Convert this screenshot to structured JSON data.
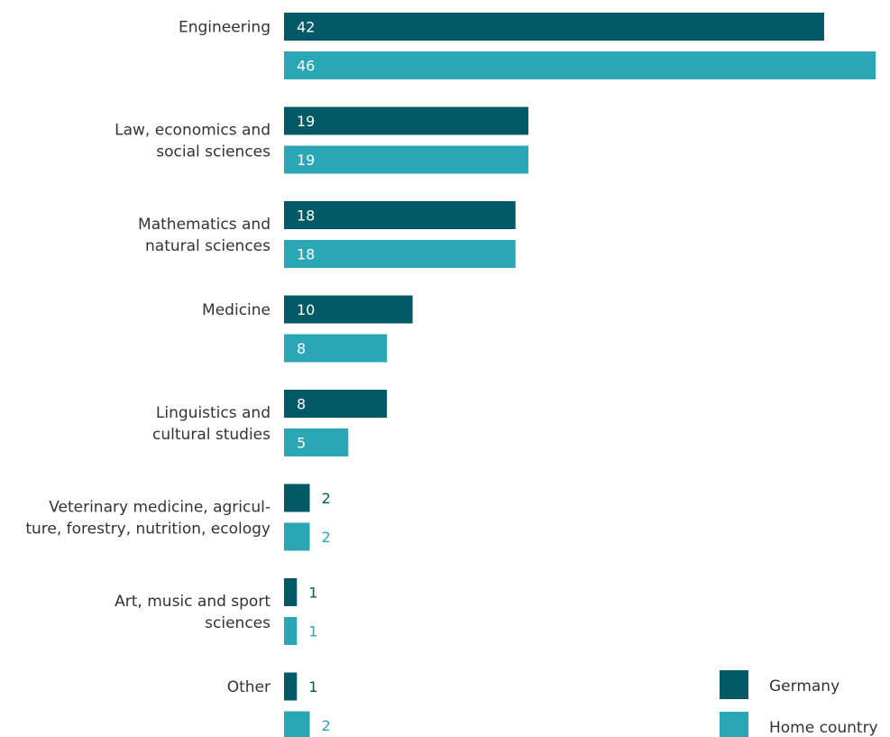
{
  "chart_data": {
    "type": "bar",
    "orientation": "horizontal",
    "categories": [
      [
        "Engineering"
      ],
      [
        "Law, economics and",
        "social sciences"
      ],
      [
        "Mathematics and",
        "natural sciences"
      ],
      [
        "Medicine"
      ],
      [
        "Linguistics and",
        "cultural studies"
      ],
      [
        "Veterinary medicine, agricul-",
        "ture, forestry, nutrition, ecology"
      ],
      [
        "Art, music and sport",
        "sciences"
      ],
      [
        "Other"
      ]
    ],
    "series": [
      {
        "name": "Germany",
        "color": "#005a66",
        "values": [
          42,
          19,
          18,
          10,
          8,
          2,
          1,
          1
        ]
      },
      {
        "name": "Home country",
        "color": "#2aa6b4",
        "values": [
          46,
          19,
          18,
          8,
          5,
          2,
          1,
          2
        ]
      }
    ],
    "xlim": [
      0,
      46
    ],
    "grid": false,
    "legend_position": "bottom-right"
  }
}
